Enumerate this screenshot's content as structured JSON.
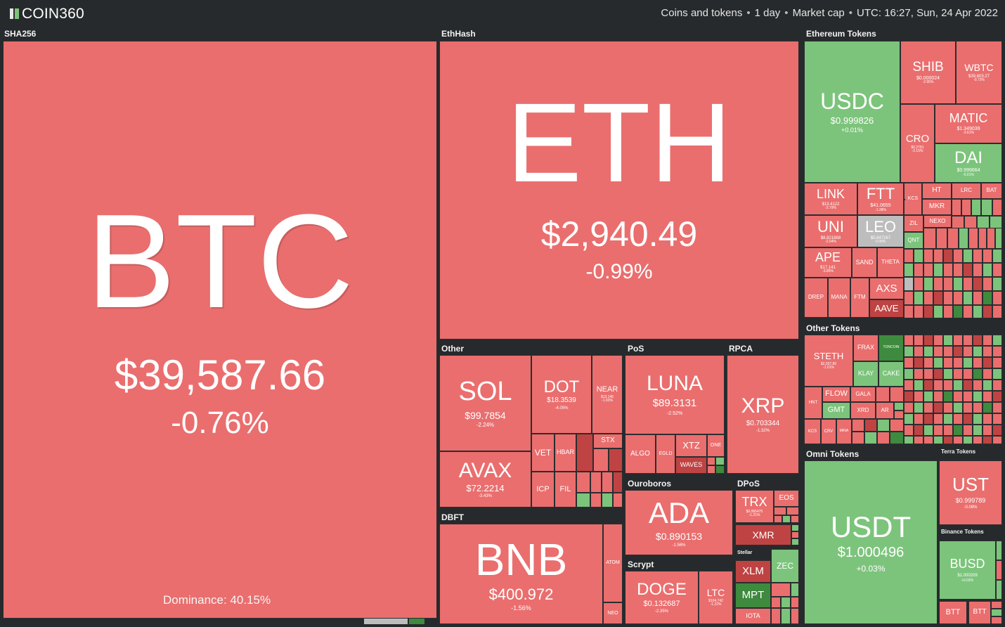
{
  "header": {
    "logo": "COIN360",
    "filter_coins": "Coins and tokens",
    "filter_period": "1 day",
    "filter_metric": "Market cap",
    "timestamp": "UTC: 16:27, Sun, 24 Apr 2022"
  },
  "groups": {
    "sha256": "SHA256",
    "ethash": "EthHash",
    "ethereum_tokens": "Ethereum Tokens",
    "other": "Other",
    "pos": "PoS",
    "rpca": "RPCA",
    "ouroboros": "Ouroboros",
    "dpos": "DPoS",
    "dbft": "DBFT",
    "scrypt": "Scrypt",
    "other_tokens": "Other Tokens",
    "omni_tokens": "Omni Tokens",
    "terra_tokens": "Terra Tokens",
    "binance_tokens": "Binance Tokens",
    "stellar": "Stellar"
  },
  "btc": {
    "symbol": "BTC",
    "price": "$39,587.66",
    "change": "-0.76%",
    "dominance": "Dominance: 40.15%"
  },
  "eth": {
    "symbol": "ETH",
    "price": "$2,940.49",
    "change": "-0.99%"
  },
  "usdc": {
    "symbol": "USDC",
    "price": "$0.999826",
    "change": "+0.01%"
  },
  "shib": {
    "symbol": "SHIB",
    "price": "$0.000024",
    "change": "-2.95%"
  },
  "wbtc": {
    "symbol": "WBTC",
    "price": "$39,603.27",
    "change": "-0.73%"
  },
  "matic": {
    "symbol": "MATIC",
    "price": "$1.349039",
    "change": "-3.61%"
  },
  "cro": {
    "symbol": "CRO",
    "price": "$0.2781",
    "change": "-2.15%"
  },
  "dai": {
    "symbol": "DAI",
    "price": "$0.999664",
    "change": "-0.01%"
  },
  "link": {
    "symbol": "LINK",
    "price": "$13.4122",
    "change": "-2.79%"
  },
  "ftt": {
    "symbol": "FTT",
    "price": "$41.0655",
    "change": "-1.38%"
  },
  "uni": {
    "symbol": "UNI",
    "price": "$8.821868",
    "change": "-2.04%"
  },
  "leo": {
    "symbol": "LEO",
    "price": "$5.847267",
    "change": "0.00%"
  },
  "ape": {
    "symbol": "APE",
    "price": "$17.141",
    "change": "-3.86%"
  },
  "sol": {
    "symbol": "SOL",
    "price": "$99.7854",
    "change": "-2.24%"
  },
  "dot": {
    "symbol": "DOT",
    "price": "$18.3539",
    "change": "-4.05%"
  },
  "near": {
    "symbol": "NEAR",
    "price": "$13.145",
    "change": "-1.93%"
  },
  "avax": {
    "symbol": "AVAX",
    "price": "$72.2214",
    "change": "-3.43%"
  },
  "luna": {
    "symbol": "LUNA",
    "price": "$89.3131",
    "change": "-2.52%"
  },
  "xrp": {
    "symbol": "XRP",
    "price": "$0.703344",
    "change": "-1.32%"
  },
  "ada": {
    "symbol": "ADA",
    "price": "$0.890153",
    "change": "-1.56%"
  },
  "bnb": {
    "symbol": "BNB",
    "price": "$400.972",
    "change": "-1.56%"
  },
  "doge": {
    "symbol": "DOGE",
    "price": "$0.132687",
    "change": "-2.35%"
  },
  "ltc": {
    "symbol": "LTC",
    "price": "$104.742",
    "change": "-1.22%"
  },
  "trx": {
    "symbol": "TRX",
    "price": "$0.065475",
    "change": "-1.21%"
  },
  "steth": {
    "symbol": "STETH",
    "price": "$2,937.80",
    "change": "-1.01%"
  },
  "usdt": {
    "symbol": "USDT",
    "price": "$1.000496",
    "change": "+0.03%"
  },
  "ust": {
    "symbol": "UST",
    "price": "$0.999789",
    "change": "-0.08%"
  },
  "busd": {
    "symbol": "BUSD",
    "price": "$1.000209",
    "change": "+0.03%"
  },
  "small": {
    "kcs": "KCS",
    "ht": "HT",
    "mkr": "MKR",
    "lrc": "LRC",
    "bat": "BAT",
    "zil": "ZIL",
    "nexo": "NEXO",
    "qnt": "QNT",
    "sand": "SAND",
    "theta": "THETA",
    "axs": "AXS",
    "aave": "AAVE",
    "drep": "DREP",
    "mana": "MANA",
    "ftm": "FTM",
    "vet": "VET",
    "hbar": "HBAR",
    "stx": "STX",
    "icp": "ICP",
    "fil": "FIL",
    "algo": "ALGO",
    "egld": "EGLD",
    "xtz": "XTZ",
    "one": "ONE",
    "waves": "WAVES",
    "eos": "EOS",
    "xmr": "XMR",
    "xlm": "XLM",
    "zec": "ZEC",
    "mpt": "MPT",
    "iota": "IOTA",
    "atom": "ATOM",
    "neo": "NEO",
    "frax": "FRAX",
    "klay": "KLAY",
    "cake": "CAKE",
    "flow": "FLOW",
    "gala": "GALA",
    "gmt": "GMT",
    "xrd": "XRD",
    "ar": "AR",
    "btt": "BTT",
    "kcs2": "KCS",
    "hnt": "HNT",
    "mina": "MINA",
    "crv": "CRV",
    "toncoin": "TONCOIN"
  }
}
